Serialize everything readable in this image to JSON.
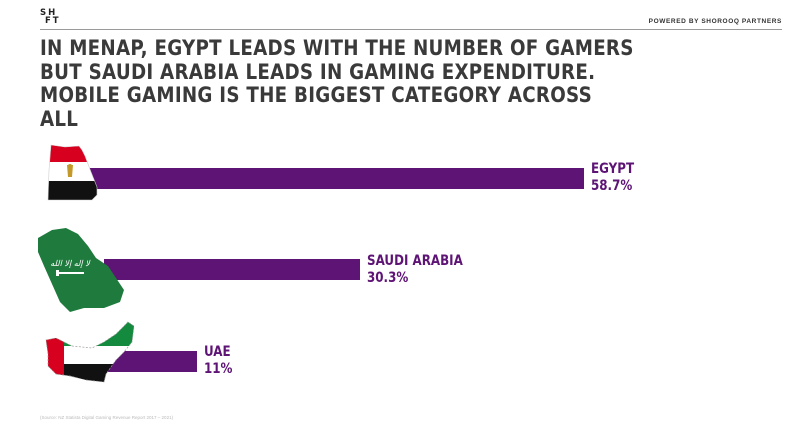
{
  "header": {
    "logo_line1": "SH",
    "logo_line2": "FT",
    "powered_by": "POWERED BY SHOROOQ PARTNERS"
  },
  "title": "IN MENAP, EGYPT LEADS WITH THE NUMBER OF GAMERS BUT SAUDI ARABIA LEADS IN GAMING EXPENDITURE. MOBILE GAMING IS THE BIGGEST CATEGORY ACROSS ALL",
  "chart_data": {
    "type": "bar",
    "orientation": "horizontal",
    "title": "",
    "categories": [
      "EGYPT",
      "SAUDI ARABIA",
      "UAE"
    ],
    "values": [
      58.7,
      30.3,
      11
    ],
    "value_labels": [
      "58.7%",
      "30.3%",
      "11%"
    ],
    "unit": "%",
    "bar_color": "#5e1475",
    "label_color": "#5e1475",
    "grid": false,
    "legend": "none"
  },
  "source": "(Source: NZ Statista Digital Gaming Revenue Report 2017 – 2021)"
}
